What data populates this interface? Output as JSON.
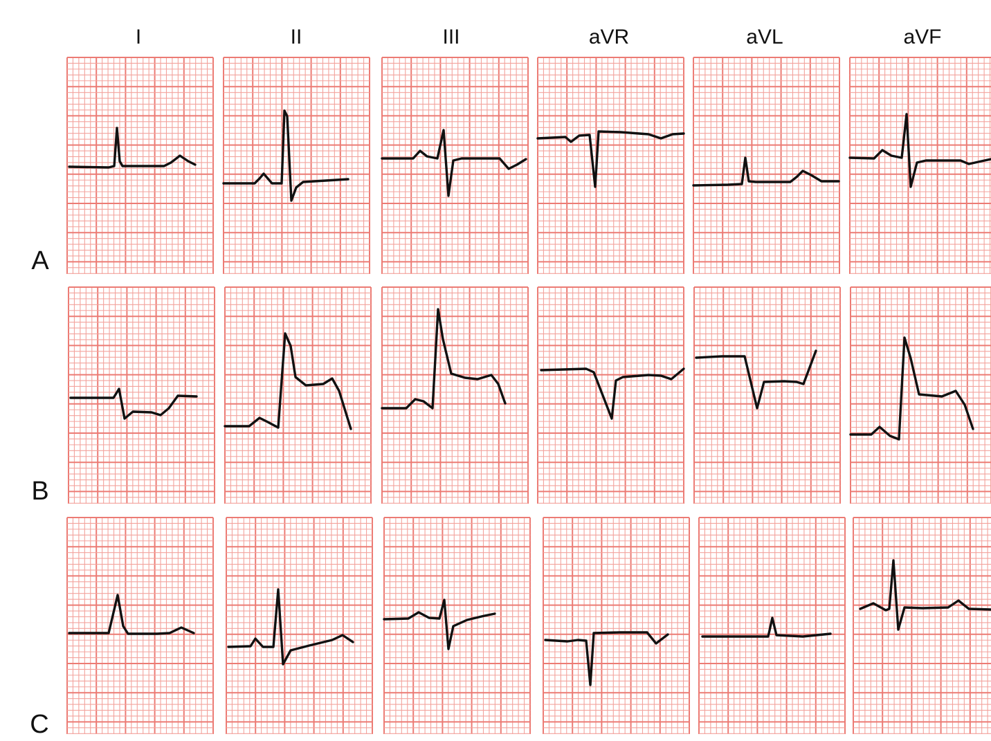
{
  "columns": [
    "I",
    "II",
    "III",
    "aVR",
    "aVL",
    "aVF"
  ],
  "rows": [
    "A",
    "B",
    "C"
  ]
}
